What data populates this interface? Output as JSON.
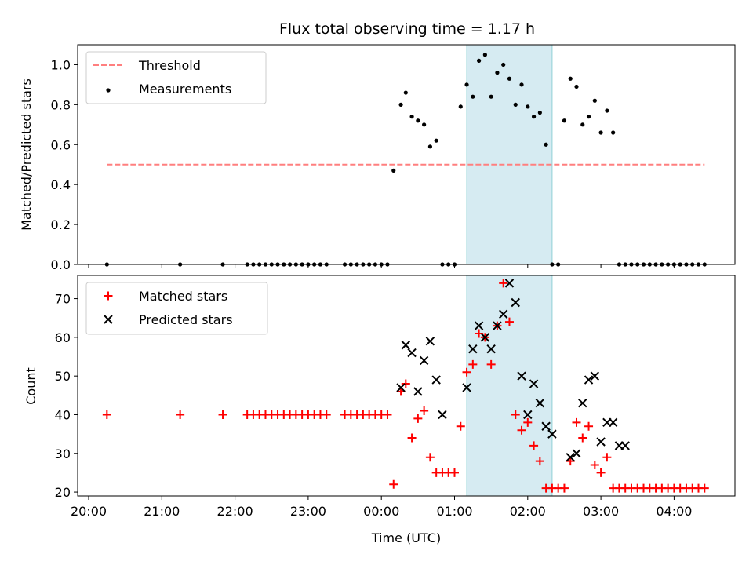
{
  "chart_data": [
    {
      "type": "scatter",
      "title": "Flux total observing time = 1.17 h",
      "ylabel": "Matched/Predicted stars",
      "xlabel": "",
      "ylim": [
        0,
        1.1
      ],
      "yticks": [
        "0.0",
        "0.2",
        "0.4",
        "0.6",
        "0.8",
        "1.0"
      ],
      "legend_position": "top-left",
      "highlight_window": [
        "01:10",
        "02:20"
      ],
      "series": [
        {
          "name": "Threshold",
          "style": "dashed-line",
          "color": "#ff7f7f",
          "x": [
            "20:15",
            "04:25"
          ],
          "y": [
            0.5,
            0.5
          ]
        },
        {
          "name": "Measurements",
          "style": "dots",
          "color": "#000000",
          "x": [
            "20:15",
            "21:15",
            "21:50",
            "22:10",
            "22:15",
            "22:20",
            "22:25",
            "22:30",
            "22:35",
            "22:40",
            "22:45",
            "22:50",
            "22:55",
            "23:00",
            "23:05",
            "23:10",
            "23:15",
            "23:30",
            "23:35",
            "23:40",
            "23:45",
            "23:50",
            "23:55",
            "00:00",
            "00:05",
            "00:10",
            "00:16",
            "00:20",
            "00:25",
            "00:30",
            "00:35",
            "00:40",
            "00:45",
            "00:50",
            "00:55",
            "01:00",
            "01:05",
            "01:10",
            "01:15",
            "01:20",
            "01:25",
            "01:30",
            "01:35",
            "01:40",
            "01:45",
            "01:50",
            "01:55",
            "02:00",
            "02:05",
            "02:10",
            "02:15",
            "02:20",
            "02:25",
            "02:30",
            "02:35",
            "02:40",
            "02:45",
            "02:50",
            "02:55",
            "03:00",
            "03:05",
            "03:10",
            "03:15",
            "03:20",
            "03:25",
            "03:30",
            "03:35",
            "03:40",
            "03:45",
            "03:50",
            "03:55",
            "04:00",
            "04:05",
            "04:10",
            "04:15",
            "04:20",
            "04:25"
          ],
          "y": [
            0,
            0,
            0,
            0,
            0,
            0,
            0,
            0,
            0,
            0,
            0,
            0,
            0,
            0,
            0,
            0,
            0,
            0,
            0,
            0,
            0,
            0,
            0,
            0,
            0,
            0.47,
            0.8,
            0.86,
            0.74,
            0.72,
            0.7,
            0.59,
            0.62,
            0,
            0,
            0,
            0.79,
            0.9,
            0.84,
            1.02,
            1.05,
            0.84,
            0.96,
            1.0,
            0.93,
            0.8,
            0.9,
            0.79,
            0.74,
            0.76,
            0.6,
            0,
            0,
            0.72,
            0.93,
            0.89,
            0.7,
            0.74,
            0.82,
            0.66,
            0.77,
            0.66,
            0,
            0,
            0,
            0,
            0,
            0,
            0,
            0,
            0,
            0,
            0,
            0,
            0,
            0,
            0
          ]
        }
      ]
    },
    {
      "type": "scatter",
      "title": "",
      "ylabel": "Count",
      "xlabel": "Time (UTC)",
      "ylim": [
        19,
        76
      ],
      "yticks": [
        "20",
        "30",
        "40",
        "50",
        "60",
        "70"
      ],
      "xticks": [
        "20:00",
        "21:00",
        "22:00",
        "23:00",
        "00:00",
        "01:00",
        "02:00",
        "03:00",
        "04:00"
      ],
      "legend_position": "top-left",
      "highlight_window": [
        "01:10",
        "02:20"
      ],
      "series": [
        {
          "name": "Matched stars",
          "marker": "plus",
          "color": "#ff0000",
          "x": [
            "20:15",
            "21:15",
            "21:50",
            "22:10",
            "22:15",
            "22:20",
            "22:25",
            "22:30",
            "22:35",
            "22:40",
            "22:45",
            "22:50",
            "22:55",
            "23:00",
            "23:05",
            "23:10",
            "23:15",
            "23:30",
            "23:35",
            "23:40",
            "23:45",
            "23:50",
            "23:55",
            "00:00",
            "00:05",
            "00:10",
            "00:16",
            "00:20",
            "00:25",
            "00:30",
            "00:35",
            "00:40",
            "00:45",
            "00:50",
            "00:55",
            "01:00",
            "01:05",
            "01:10",
            "01:15",
            "01:20",
            "01:25",
            "01:30",
            "01:35",
            "01:40",
            "01:45",
            "01:50",
            "01:55",
            "02:00",
            "02:05",
            "02:10",
            "02:15",
            "02:20",
            "02:25",
            "02:30",
            "02:35",
            "02:40",
            "02:45",
            "02:50",
            "02:55",
            "03:00",
            "03:05",
            "03:10",
            "03:15",
            "03:20",
            "03:25",
            "03:30",
            "03:35",
            "03:40",
            "03:45",
            "03:50",
            "03:55",
            "04:00",
            "04:05",
            "04:10",
            "04:15",
            "04:20",
            "04:25"
          ],
          "y": [
            40,
            40,
            40,
            40,
            40,
            40,
            40,
            40,
            40,
            40,
            40,
            40,
            40,
            40,
            40,
            40,
            40,
            40,
            40,
            40,
            40,
            40,
            40,
            40,
            40,
            22,
            46,
            48,
            34,
            39,
            41,
            29,
            25,
            25,
            25,
            25,
            37,
            51,
            53,
            61,
            60,
            53,
            63,
            74,
            64,
            40,
            36,
            38,
            32,
            28,
            21,
            21,
            21,
            21,
            28,
            38,
            34,
            37,
            27,
            25,
            29,
            21,
            21,
            21,
            21,
            21,
            21,
            21,
            21,
            21,
            21,
            21,
            21,
            21,
            21,
            21,
            21
          ]
        },
        {
          "name": "Predicted stars",
          "marker": "x",
          "color": "#000000",
          "x": [
            "00:16",
            "00:20",
            "00:25",
            "00:30",
            "00:35",
            "00:40",
            "00:45",
            "00:50",
            "01:10",
            "01:15",
            "01:20",
            "01:25",
            "01:30",
            "01:35",
            "01:40",
            "01:45",
            "01:50",
            "01:55",
            "02:00",
            "02:05",
            "02:10",
            "02:15",
            "02:20",
            "02:35",
            "02:40",
            "02:45",
            "02:50",
            "02:55",
            "03:00",
            "03:05",
            "03:10",
            "03:15",
            "03:20"
          ],
          "y": [
            47,
            58,
            56,
            46,
            54,
            59,
            49,
            40,
            47,
            57,
            63,
            60,
            57,
            63,
            66,
            74,
            69,
            50,
            40,
            48,
            43,
            37,
            35,
            29,
            30,
            43,
            49,
            50,
            33,
            38,
            38,
            32,
            32
          ]
        }
      ]
    }
  ]
}
